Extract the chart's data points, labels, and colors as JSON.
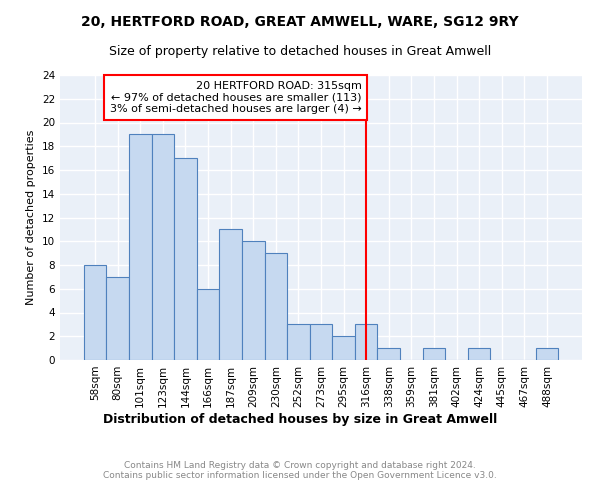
{
  "title": "20, HERTFORD ROAD, GREAT AMWELL, WARE, SG12 9RY",
  "subtitle": "Size of property relative to detached houses in Great Amwell",
  "xlabel": "Distribution of detached houses by size in Great Amwell",
  "ylabel": "Number of detached properties",
  "footer_line1": "Contains HM Land Registry data © Crown copyright and database right 2024.",
  "footer_line2": "Contains public sector information licensed under the Open Government Licence v3.0.",
  "categories": [
    "58sqm",
    "80sqm",
    "101sqm",
    "123sqm",
    "144sqm",
    "166sqm",
    "187sqm",
    "209sqm",
    "230sqm",
    "252sqm",
    "273sqm",
    "295sqm",
    "316sqm",
    "338sqm",
    "359sqm",
    "381sqm",
    "402sqm",
    "424sqm",
    "445sqm",
    "467sqm",
    "488sqm"
  ],
  "values": [
    8,
    7,
    19,
    19,
    17,
    6,
    11,
    10,
    9,
    3,
    3,
    2,
    3,
    1,
    0,
    1,
    0,
    1,
    0,
    0,
    1
  ],
  "bar_color": "#c6d9f0",
  "bar_edge_color": "#4f81bd",
  "property_line_value": "316sqm",
  "property_label": "20 HERTFORD ROAD: 315sqm",
  "annotation_line1": "← 97% of detached houses are smaller (113)",
  "annotation_line2": "3% of semi-detached houses are larger (4) →",
  "annotation_box_color": "#ffffff",
  "annotation_box_edge_color": "#ff0000",
  "line_color": "#ff0000",
  "ylim": [
    0,
    24
  ],
  "yticks": [
    0,
    2,
    4,
    6,
    8,
    10,
    12,
    14,
    16,
    18,
    20,
    22,
    24
  ],
  "background_color": "#eaf0f8",
  "grid_color": "#ffffff",
  "title_fontsize": 10,
  "subtitle_fontsize": 9,
  "xlabel_fontsize": 9,
  "ylabel_fontsize": 8,
  "tick_fontsize": 7.5,
  "annotation_fontsize": 8,
  "footer_fontsize": 6.5
}
